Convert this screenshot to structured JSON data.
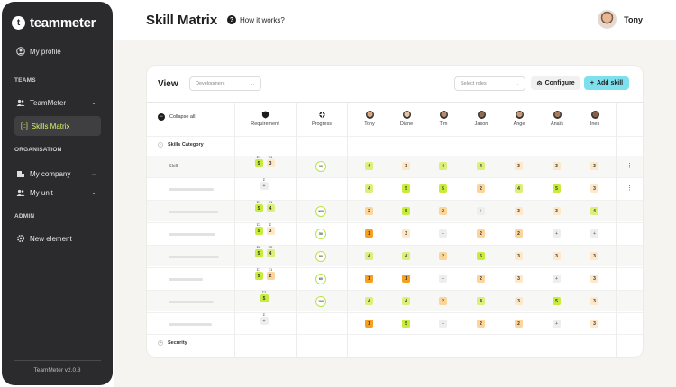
{
  "sidebar": {
    "logo_mark": "t",
    "logo_text": "teammeter",
    "profile": "My profile",
    "teams_head": "TEAMS",
    "team_name": "TeamMeter",
    "skills_matrix": "Skills Matrix",
    "org_head": "ORGANISATION",
    "my_company": "My company",
    "my_unit": "My unit",
    "admin_head": "ADMIN",
    "new_element": "New element",
    "version": "TeamMeter v2.0.8"
  },
  "header": {
    "title": "Skill Matrix",
    "how_it_works": "How it works?",
    "user_name": "Tony"
  },
  "toolbar": {
    "view_label": "View",
    "view_select": "Development",
    "roles_placeholder": "Select roles",
    "configure": "Configure",
    "add_skill": "Add skill"
  },
  "matrix": {
    "collapse_all": "Collapse all",
    "col_requirement": "Requirement",
    "col_progress": "Progress",
    "people": [
      "Tony",
      "Diane",
      "Tim",
      "Jason",
      "Ange",
      "Anaïs",
      "Ines"
    ],
    "category": "Skills Category",
    "skill_name": "Skill",
    "security": "Security",
    "rows": [
      {
        "req": [
          [
            "Σ1",
            "5"
          ],
          [
            "Σ1",
            "3"
          ]
        ],
        "progress": "90",
        "cells": [
          "4",
          "3",
          "4",
          "4",
          "3",
          "3",
          "3"
        ]
      },
      {
        "req": [
          [
            "Σ",
            "+"
          ]
        ],
        "progress": "",
        "cells": [
          "4",
          "5",
          "5",
          "2",
          "4",
          "5",
          "3"
        ]
      },
      {
        "req": [
          [
            "Σ1",
            "5"
          ],
          [
            "Σ1",
            "4"
          ]
        ],
        "progress": "100",
        "cells": [
          "2",
          "5",
          "2",
          "+",
          "3",
          "3",
          "4"
        ]
      },
      {
        "req": [
          [
            "Σ3",
            "5"
          ],
          [
            "Σ",
            "3"
          ]
        ],
        "progress": "50",
        "cells": [
          "1",
          "3",
          "+",
          "2",
          "2",
          "+",
          "+"
        ]
      },
      {
        "req": [
          [
            "Σ2",
            "5"
          ],
          [
            "Σ2",
            "4"
          ]
        ],
        "progress": "80",
        "cells": [
          "4",
          "4",
          "2",
          "5",
          "3",
          "3",
          "3"
        ]
      },
      {
        "req": [
          [
            "Σ1",
            "5"
          ],
          [
            "Σ1",
            "2"
          ]
        ],
        "progress": "60",
        "cells": [
          "1",
          "1",
          "+",
          "2",
          "3",
          "+",
          "3"
        ]
      },
      {
        "req": [
          [
            "Σ2",
            "5"
          ]
        ],
        "progress": "100",
        "cells": [
          "4",
          "4",
          "2",
          "4",
          "3",
          "5",
          "3"
        ]
      },
      {
        "req": [
          [
            "Σ",
            "+"
          ]
        ],
        "progress": "",
        "cells": [
          "1",
          "5",
          "+",
          "2",
          "2",
          "+",
          "3"
        ]
      }
    ]
  },
  "colors": {
    "sidebar_bg": "#2b2b2d",
    "accent_lime": "#d7f56a",
    "add_button": "#7ee0ec",
    "level_5": "#c7ec3b",
    "level_1": "#f5a021"
  }
}
